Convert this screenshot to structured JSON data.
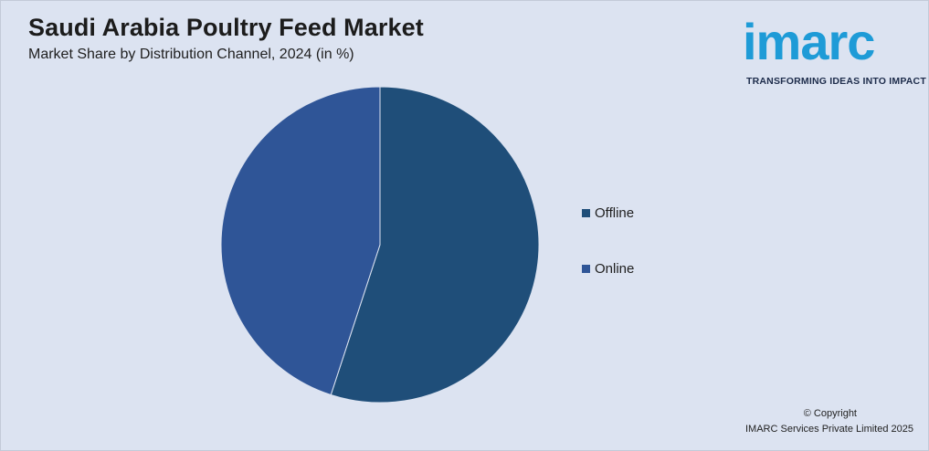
{
  "header": {
    "title": "Saudi Arabia Poultry Feed Market",
    "subtitle": "Market Share by Distribution Channel, 2024 (in %)"
  },
  "logo": {
    "wordmark": "imarc",
    "tagline": "TRANSFORMING IDEAS INTO IMPACT",
    "color": "#1e9bd7"
  },
  "chart_data": {
    "type": "pie",
    "title": "Saudi Arabia Poultry Feed Market",
    "subtitle": "Market Share by Distribution Channel, 2024 (in %)",
    "categories": [
      "Offline",
      "Online"
    ],
    "values": [
      55,
      45
    ],
    "colors": [
      "#1f4e79",
      "#2f5597"
    ],
    "legend_position": "right",
    "start_angle": "12 o'clock",
    "direction": "clockwise"
  },
  "footer": {
    "copyright_line1": "© Copyright",
    "copyright_line2": "IMARC Services Private Limited 2025"
  }
}
